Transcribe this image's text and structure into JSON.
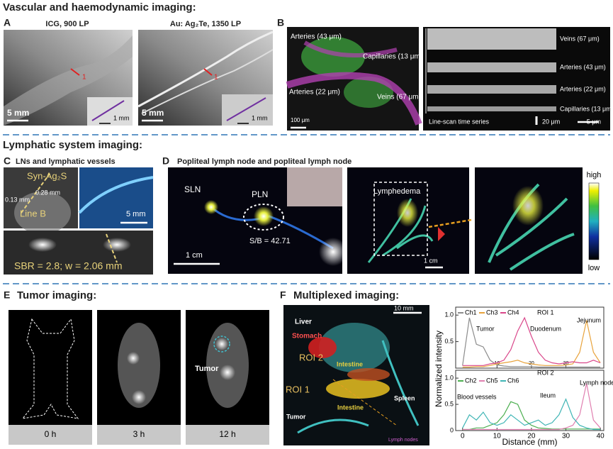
{
  "sections": [
    "Vascular and haemodynamic imaging:",
    "Lymphatic system imaging:",
    "Tumor imaging:",
    "Multiplexed imaging:"
  ],
  "panel_letters": [
    "A",
    "B",
    "C",
    "D",
    "E",
    "F"
  ],
  "panel_a": {
    "titles": [
      "ICG, 900 LP",
      "Au: Ag₂Te, 1350 LP"
    ],
    "markers": [
      "1",
      "1"
    ],
    "scale_bars": [
      "5 mm",
      "5 mm"
    ],
    "inset_scale_bars": [
      "1 mm",
      "1 mm"
    ]
  },
  "panel_b": {
    "labels": [
      "Arteries (43 μm)",
      "Capillaries (13 μm)",
      "Arteries (22 μm)",
      "Veins (67 μm)"
    ],
    "scale_bar": "100 μm",
    "line_scan_labels": [
      "Veins (67 μm)",
      "Arteries (43 μm)",
      "Arteries (22 μm)",
      "Capillaries (13 μm)"
    ],
    "line_scan_title": "Line-scan time series",
    "line_scan_scale_bars": [
      "20 μm",
      "5 μm"
    ]
  },
  "panel_c": {
    "title": "LNs and lymphatic vessels",
    "labels": [
      "Syn-Ag₂S",
      "0.13 mm",
      "0.28 mm",
      "Line B"
    ],
    "scale_bar": "5 mm",
    "result": "SBR = 2.8; w = 2.06 mm"
  },
  "panel_d": {
    "title": "Popliteal lymph node and popliteal lymph node",
    "labels": [
      "SLN",
      "PLN",
      "S/B = 42.71",
      "Lymphedema"
    ],
    "scale_bars": [
      "1 cm",
      "1 cm"
    ],
    "colorbar": [
      "high",
      "low"
    ]
  },
  "panel_e": {
    "times": [
      "0 h",
      "3 h",
      "12 h"
    ],
    "label": "Tumor"
  },
  "panel_f": {
    "scale_bar": "10 mm",
    "labels": [
      "Liver",
      "Stomach",
      "ROI 2",
      "Intestine",
      "ROI 1",
      "Intestine",
      "Spleen",
      "Tumor",
      "Lymph nodes"
    ]
  },
  "chart_data": [
    {
      "type": "line",
      "label": "ROI 1",
      "y_label": "Normalized intensity",
      "x": [
        0,
        2,
        4,
        6,
        8,
        10,
        12,
        14,
        16,
        18,
        20,
        22,
        24,
        26,
        28,
        30,
        32,
        34,
        36,
        38,
        40
      ],
      "xlim": [
        -2,
        41
      ],
      "ylim": [
        0,
        1.15
      ],
      "xticks": [
        10,
        20,
        30
      ],
      "yticks": [
        {
          "value": 1,
          "label": "1.0"
        },
        {
          "value": 0.5,
          "label": "0.5"
        }
      ],
      "series": [
        {
          "name": "Ch1",
          "color": "#8c8c8c",
          "values": [
            0.05,
            0.95,
            0.45,
            0.4,
            0.15,
            0.06,
            0.04,
            0.03,
            0.03,
            0.03,
            0.03,
            0.02,
            0.02,
            0.02,
            0.02,
            0.02,
            0.02,
            0.02,
            0.02,
            0.02,
            0.02
          ]
        },
        {
          "name": "Ch3",
          "color": "#e8a33c",
          "values": [
            0.02,
            0.02,
            0.03,
            0.03,
            0.05,
            0.08,
            0.1,
            0.12,
            0.15,
            0.1,
            0.08,
            0.06,
            0.05,
            0.05,
            0.05,
            0.06,
            0.08,
            0.3,
            0.9,
            0.3,
            0.1
          ]
        },
        {
          "name": "Ch4",
          "color": "#d9468a",
          "values": [
            0.05,
            0.05,
            0.05,
            0.05,
            0.08,
            0.1,
            0.15,
            0.35,
            0.7,
            0.95,
            0.6,
            0.3,
            0.15,
            0.1,
            0.08,
            0.1,
            0.12,
            0.1,
            0.1,
            0.15,
            0.1
          ]
        }
      ],
      "annotations": [
        "Tumor",
        "Duodenum",
        "Jejunum"
      ]
    },
    {
      "type": "line",
      "label": "ROI 2",
      "x_label": "Distance (mm)",
      "x": [
        0,
        2,
        4,
        6,
        8,
        10,
        12,
        14,
        16,
        18,
        20,
        22,
        24,
        26,
        28,
        30,
        32,
        34,
        36,
        38,
        40
      ],
      "xlim": [
        -2,
        41
      ],
      "ylim": [
        0,
        1.15
      ],
      "xticks": [
        0,
        10,
        20,
        30,
        40
      ],
      "yticks": [
        {
          "value": 1,
          "label": "1.0"
        },
        {
          "value": 0.5,
          "label": "0.5"
        },
        0
      ],
      "series": [
        {
          "name": "Ch2",
          "color": "#4caf50",
          "values": [
            0.02,
            0.02,
            0.05,
            0.05,
            0.1,
            0.15,
            0.3,
            0.55,
            0.5,
            0.2,
            0.1,
            0.05,
            0.04,
            0.03,
            0.03,
            0.03,
            0.03,
            0.03,
            0.03,
            0.03,
            0.03
          ]
        },
        {
          "name": "Ch5",
          "color": "#e07fb0",
          "values": [
            0.02,
            0.02,
            0.02,
            0.02,
            0.02,
            0.02,
            0.02,
            0.02,
            0.02,
            0.02,
            0.02,
            0.02,
            0.02,
            0.02,
            0.02,
            0.05,
            0.1,
            0.3,
            0.9,
            0.2,
            0.05
          ]
        },
        {
          "name": "Ch6",
          "color": "#3fb5b5",
          "values": [
            0.05,
            0.3,
            0.2,
            0.35,
            0.15,
            0.1,
            0.15,
            0.3,
            0.2,
            0.1,
            0.15,
            0.2,
            0.1,
            0.15,
            0.3,
            0.6,
            0.25,
            0.1,
            0.05,
            0.02,
            0.02
          ]
        }
      ],
      "annotations": [
        "Blood vessels",
        "Ileum",
        "Lymph node"
      ]
    }
  ]
}
